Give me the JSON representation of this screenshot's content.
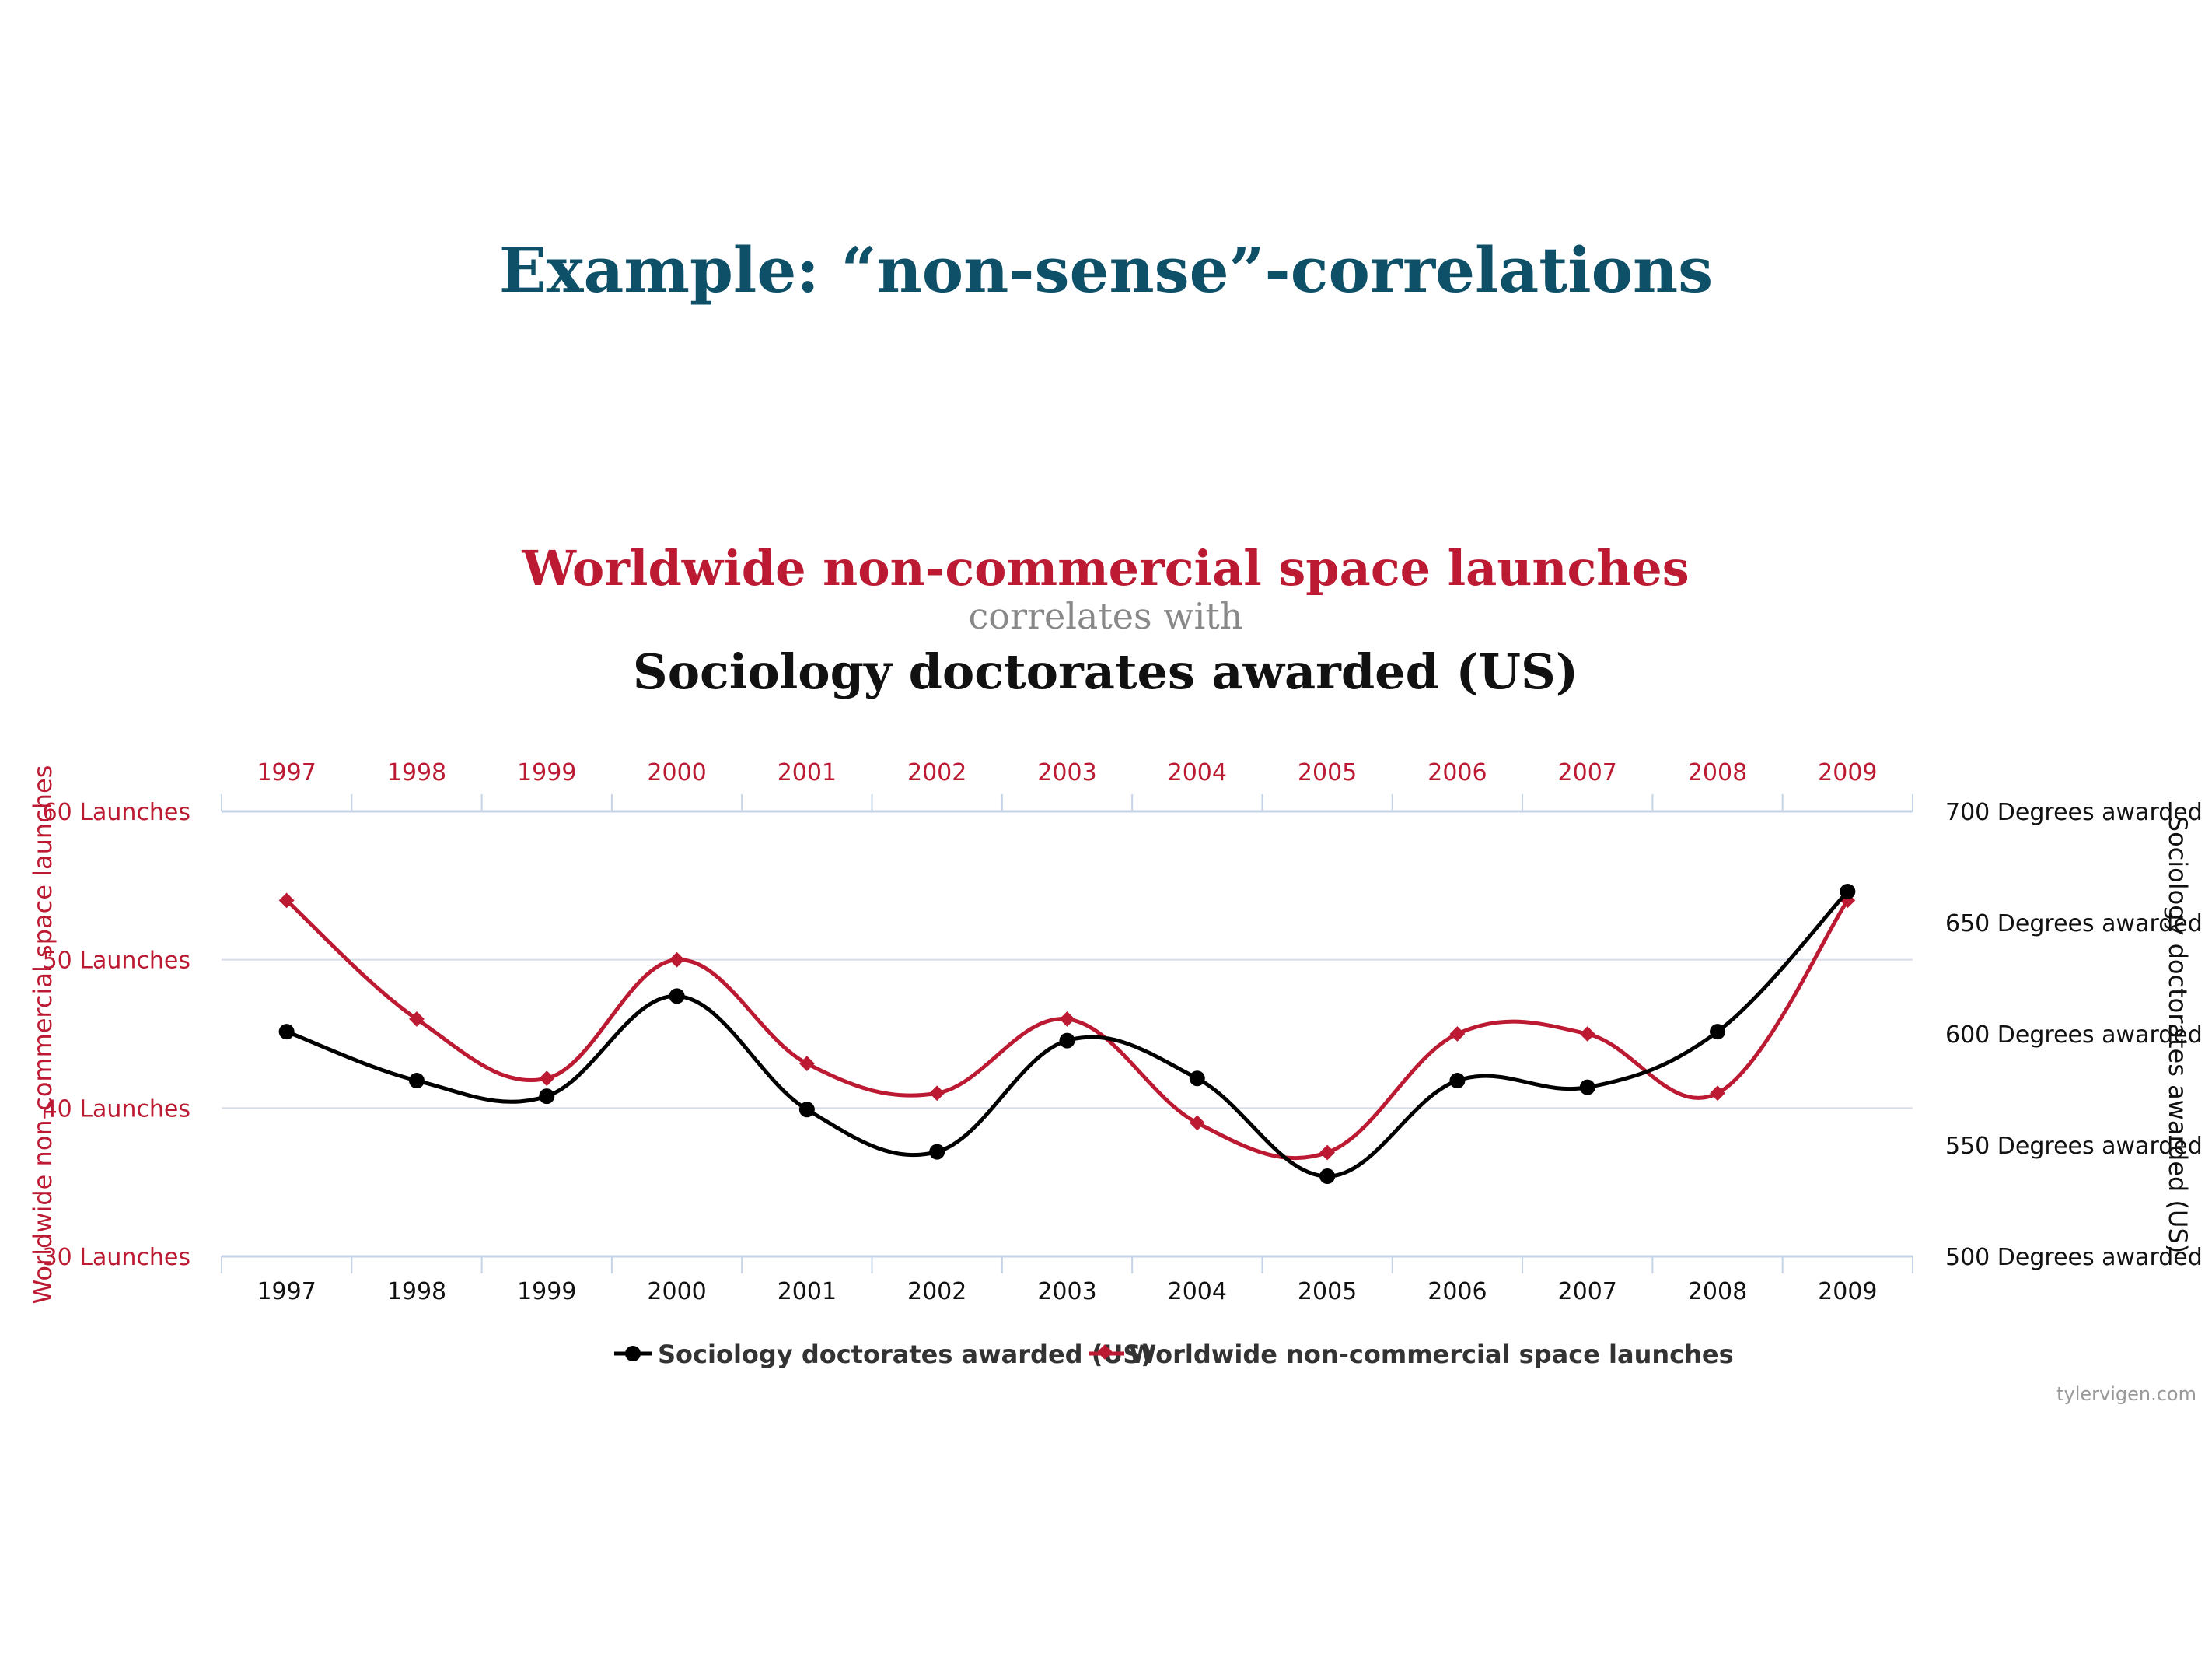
{
  "slide": {
    "title": "Example: “non-sense”-correlations"
  },
  "chart_data": {
    "type": "line",
    "title": "Worldwide non-commercial space launches",
    "connector": "correlates with",
    "subtitle": "Sociology doctorates awarded (US)",
    "categories": [
      "1997",
      "1998",
      "1999",
      "2000",
      "2001",
      "2002",
      "2003",
      "2004",
      "2005",
      "2006",
      "2007",
      "2008",
      "2009"
    ],
    "y_left": {
      "label": "Worldwide non-commercial space launches",
      "range": [
        30,
        60
      ],
      "ticks": [
        {
          "value": 60,
          "label": "60 Launches"
        },
        {
          "value": 50,
          "label": "50 Launches"
        },
        {
          "value": 40,
          "label": "40 Launches"
        },
        {
          "value": 30,
          "label": "30 Launches"
        }
      ]
    },
    "y_right": {
      "label": "Sociology doctorates awarded (US)",
      "range": [
        500,
        700
      ],
      "ticks": [
        {
          "value": 700,
          "label": "700 Degrees awarded"
        },
        {
          "value": 650,
          "label": "650 Degrees awarded"
        },
        {
          "value": 600,
          "label": "600 Degrees awarded"
        },
        {
          "value": 550,
          "label": "550 Degrees awarded"
        },
        {
          "value": 500,
          "label": "500 Degrees awarded"
        }
      ]
    },
    "series": [
      {
        "name": "Sociology doctorates awarded (US)",
        "axis": "right",
        "color": "#000000",
        "marker": "circle",
        "values": [
          601,
          579,
          572,
          617,
          566,
          547,
          597,
          580,
          536,
          579,
          576,
          601,
          664
        ]
      },
      {
        "name": "Worldwide non-commercial space launches",
        "axis": "left",
        "color": "#bb1a32",
        "marker": "diamond",
        "values": [
          54,
          46,
          42,
          50,
          43,
          41,
          46,
          39,
          37,
          45,
          45,
          41,
          54
        ]
      }
    ],
    "grid": true,
    "legend": "bottom-center",
    "credit": "tylervigen.com"
  }
}
